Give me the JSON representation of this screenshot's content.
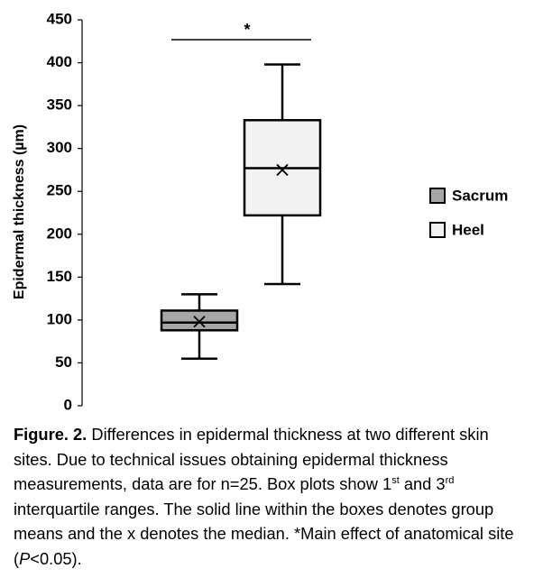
{
  "chart_data": {
    "type": "box",
    "ylabel": "Epidermal thickness (µm)",
    "ylim": [
      0,
      450
    ],
    "yticks": [
      0,
      50,
      100,
      150,
      200,
      250,
      300,
      350,
      400,
      450
    ],
    "legend": "right",
    "series": [
      {
        "name": "Sacrum",
        "color": "#a6a6a6",
        "whislo": 55,
        "q1": 88,
        "mean": 97,
        "median": 98,
        "q3": 111,
        "whishi": 130
      },
      {
        "name": "Heel",
        "color": "#f2f2f2",
        "whislo": 142,
        "q1": 222,
        "mean": 277,
        "median": 275,
        "q3": 333,
        "whishi": 398
      }
    ],
    "significance": {
      "label": "*"
    }
  },
  "caption": [
    {
      "text": "Figure. 2.",
      "style": "bold"
    },
    {
      "text": " Differences in epidermal thickness at two different skin sites. Due to technical issues obtaining epidermal thickness measurements, data are for n=25. Box plots show 1",
      "style": "normal"
    },
    {
      "text": "st",
      "style": "sup"
    },
    {
      "text": " and 3",
      "style": "normal"
    },
    {
      "text": "rd",
      "style": "sup"
    },
    {
      "text": " interquartile ranges. The solid line within the boxes denotes group means and the x denotes the median. *Main effect of anatomical site (",
      "style": "normal"
    },
    {
      "text": "P",
      "style": "italic"
    },
    {
      "text": "<0.05).",
      "style": "normal"
    }
  ]
}
